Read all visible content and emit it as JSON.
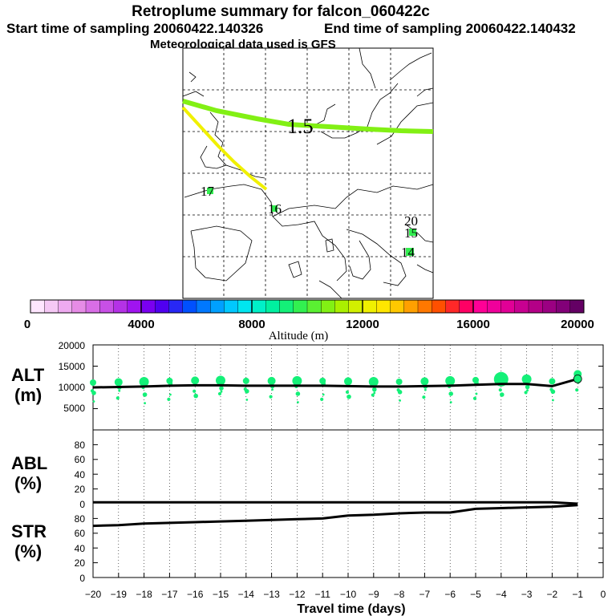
{
  "header": {
    "title": "Retroplume summary for falcon_060422c",
    "start_label": "Start time of sampling 20060422.140326",
    "end_label": "End time of sampling 20060422.140432",
    "met_label": "Meteorological data used is GFS"
  },
  "colorbar": {
    "colors": [
      "#ffe6ff",
      "#f5c8f5",
      "#eeaaf0",
      "#e68ce6",
      "#d86ee6",
      "#c850e6",
      "#b432e6",
      "#a014f0",
      "#7a00f0",
      "#5000f0",
      "#2828f5",
      "#0050ff",
      "#0078ff",
      "#00a0ff",
      "#00c8ff",
      "#00e6f0",
      "#00f0c8",
      "#00f0a0",
      "#14f078",
      "#32f050",
      "#5af032",
      "#82f014",
      "#aaf000",
      "#d2f000",
      "#f0f000",
      "#ffe600",
      "#ffc800",
      "#ffa000",
      "#ff7800",
      "#ff5000",
      "#ff2828",
      "#ff0064",
      "#ff0096",
      "#f0009b",
      "#e10096",
      "#c80091",
      "#b40087",
      "#9b0082",
      "#820078",
      "#640064"
    ],
    "ticks": [
      "0",
      "4000",
      "8000",
      "12000",
      "16000",
      "20000"
    ],
    "title": "Altitude (m)"
  },
  "map": {
    "labels": [
      "1.5",
      "17",
      "16",
      "20",
      "15",
      "14"
    ]
  },
  "panels": {
    "alt_label": [
      "ALT",
      "(m)"
    ],
    "abl_label": [
      "ABL",
      "(%)"
    ],
    "str_label": [
      "STR",
      "(%)"
    ],
    "alt_ticks": [
      "20000",
      "15000",
      "10000",
      "5000"
    ],
    "pct_ticks": [
      "80",
      "60",
      "40",
      "20",
      "0"
    ],
    "x_ticks": [
      "−20",
      "−19",
      "−18",
      "−17",
      "−16",
      "−15",
      "−14",
      "−13",
      "−12",
      "−11",
      "−10",
      "−9",
      "−8",
      "−7",
      "−6",
      "−5",
      "−4",
      "−3",
      "−2",
      "−1",
      "0"
    ],
    "x_title": "Travel time (days)"
  },
  "chart_data": [
    {
      "type": "line",
      "title": "ALT (m)",
      "xlabel": "Travel time (days)",
      "ylabel": "ALT (m)",
      "xlim": [
        -20,
        0
      ],
      "ylim": [
        0,
        20000
      ],
      "x": [
        -20,
        -19,
        -18,
        -17,
        -16,
        -15,
        -14,
        -13,
        -12,
        -11,
        -10,
        -9,
        -8,
        -7,
        -6,
        -5,
        -4,
        -3,
        -2,
        -1
      ],
      "values": [
        10000,
        10100,
        10200,
        10400,
        10500,
        10500,
        10400,
        10400,
        10400,
        10400,
        10300,
        10200,
        10200,
        10300,
        10400,
        10600,
        10800,
        10800,
        10300,
        12000
      ],
      "series_color": "#000000",
      "dot_color": "#14f078"
    },
    {
      "type": "line",
      "title": "ABL (%)",
      "xlabel": "Travel time (days)",
      "ylabel": "ABL (%)",
      "xlim": [
        -20,
        0
      ],
      "ylim": [
        0,
        100
      ],
      "x": [
        -20,
        -19,
        -18,
        -17,
        -16,
        -15,
        -14,
        -13,
        -12,
        -11,
        -10,
        -9,
        -8,
        -7,
        -6,
        -5,
        -4,
        -3,
        -2,
        -1
      ],
      "values": [
        2,
        2,
        2,
        2,
        2,
        2,
        2,
        2,
        2,
        2,
        2,
        2,
        2,
        2,
        2,
        2,
        2,
        2,
        2,
        0
      ]
    },
    {
      "type": "line",
      "title": "STR (%)",
      "xlabel": "Travel time (days)",
      "ylabel": "STR (%)",
      "xlim": [
        -20,
        0
      ],
      "ylim": [
        0,
        100
      ],
      "x": [
        -20,
        -19,
        -18,
        -17,
        -16,
        -15,
        -14,
        -13,
        -12,
        -11,
        -10,
        -9,
        -8,
        -7,
        -6,
        -5,
        -4,
        -3,
        -2,
        -1
      ],
      "values": [
        70,
        71,
        73,
        74,
        75,
        76,
        77,
        78,
        79,
        80,
        84,
        85,
        87,
        88,
        88,
        93,
        94,
        95,
        96,
        98
      ]
    }
  ]
}
